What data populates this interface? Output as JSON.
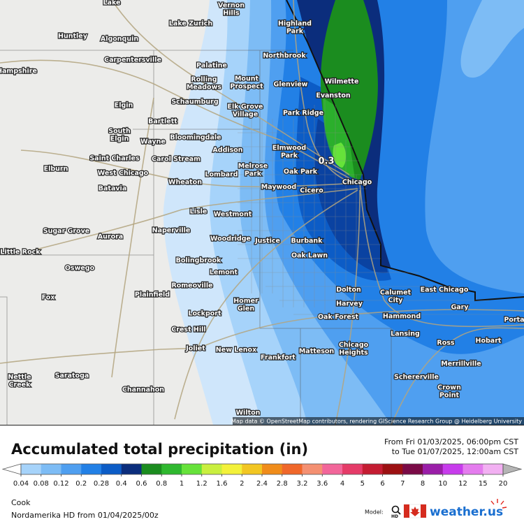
{
  "map": {
    "places": [
      {
        "lines": [
          "Lake"
        ]
      },
      {
        "lines": [
          "Vernon",
          "Hills"
        ]
      },
      {
        "lines": [
          "Lake Zurich"
        ]
      },
      {
        "lines": [
          "Highland",
          "Park"
        ]
      },
      {
        "lines": [
          "Huntley"
        ]
      },
      {
        "lines": [
          "Algonquin"
        ]
      },
      {
        "lines": [
          "Carpentersville"
        ]
      },
      {
        "lines": [
          "Northbrook"
        ]
      },
      {
        "lines": [
          "Hampshire"
        ]
      },
      {
        "lines": [
          "Palatine"
        ]
      },
      {
        "lines": [
          "Rolling",
          "Meadows"
        ]
      },
      {
        "lines": [
          "Mount",
          "Prospect"
        ]
      },
      {
        "lines": [
          "Glenview"
        ]
      },
      {
        "lines": [
          "Wilmette"
        ]
      },
      {
        "lines": [
          "Evanston"
        ]
      },
      {
        "lines": [
          "Schaumburg"
        ]
      },
      {
        "lines": [
          "Elgin"
        ]
      },
      {
        "lines": [
          "Elk Grove",
          "Village"
        ]
      },
      {
        "lines": [
          "Park Ridge"
        ]
      },
      {
        "lines": [
          "Bartlett"
        ]
      },
      {
        "lines": [
          "South",
          "Elgin"
        ]
      },
      {
        "lines": [
          "Wayne"
        ]
      },
      {
        "lines": [
          "Bloomingdale"
        ]
      },
      {
        "lines": [
          "Addison"
        ]
      },
      {
        "lines": [
          "Elmwood",
          "Park"
        ]
      },
      {
        "lines": [
          "Saint Charles"
        ]
      },
      {
        "lines": [
          "Carol Stream"
        ]
      },
      {
        "lines": [
          "Melrose",
          "Park"
        ]
      },
      {
        "lines": [
          "Oak Park"
        ]
      },
      {
        "lines": [
          "West Chicago"
        ]
      },
      {
        "lines": [
          "Lombard"
        ]
      },
      {
        "lines": [
          "Elburn"
        ]
      },
      {
        "lines": [
          "Chicago"
        ]
      },
      {
        "lines": [
          "Wheaton"
        ]
      },
      {
        "lines": [
          "Maywood"
        ]
      },
      {
        "lines": [
          "Cicero"
        ]
      },
      {
        "lines": [
          "Batavia"
        ]
      },
      {
        "lines": [
          "Lisle"
        ]
      },
      {
        "lines": [
          "Westmont"
        ]
      },
      {
        "lines": [
          "Sugar Grove"
        ]
      },
      {
        "lines": [
          "Naperville"
        ]
      },
      {
        "lines": [
          "Aurora"
        ]
      },
      {
        "lines": [
          "Woodridge"
        ]
      },
      {
        "lines": [
          "Justice"
        ]
      },
      {
        "lines": [
          "Burbank"
        ]
      },
      {
        "lines": [
          "Little Rock"
        ]
      },
      {
        "lines": [
          "Bolingbrook"
        ]
      },
      {
        "lines": [
          "Oak Lawn"
        ]
      },
      {
        "lines": [
          "Oswego"
        ]
      },
      {
        "lines": [
          "Lemont"
        ]
      },
      {
        "lines": [
          "Romeoville"
        ]
      },
      {
        "lines": [
          "Dolton"
        ]
      },
      {
        "lines": [
          "Calumet",
          "City"
        ]
      },
      {
        "lines": [
          "East Chicago"
        ]
      },
      {
        "lines": [
          "Fox"
        ]
      },
      {
        "lines": [
          "Plainfield"
        ]
      },
      {
        "lines": [
          "Homer",
          "Glen"
        ]
      },
      {
        "lines": [
          "Harvey"
        ]
      },
      {
        "lines": [
          "Gary"
        ]
      },
      {
        "lines": [
          "Lockport"
        ]
      },
      {
        "lines": [
          "Oak Forest"
        ]
      },
      {
        "lines": [
          "Hammond"
        ]
      },
      {
        "lines": [
          "Porta"
        ]
      },
      {
        "lines": [
          "Crest Hill"
        ]
      },
      {
        "lines": [
          "Lansing"
        ]
      },
      {
        "lines": [
          "Ross"
        ]
      },
      {
        "lines": [
          "Hobart"
        ]
      },
      {
        "lines": [
          "Joliet"
        ]
      },
      {
        "lines": [
          "New Lenox"
        ]
      },
      {
        "lines": [
          "Matteson"
        ]
      },
      {
        "lines": [
          "Chicago",
          "Heights"
        ]
      },
      {
        "lines": [
          "Frankfort"
        ]
      },
      {
        "lines": [
          "Merrillville"
        ]
      },
      {
        "lines": [
          "Nettle",
          "Creek"
        ]
      },
      {
        "lines": [
          "Saratoga"
        ]
      },
      {
        "lines": [
          "Schererville"
        ]
      },
      {
        "lines": [
          "Crown",
          "Point"
        ]
      },
      {
        "lines": [
          "Channahon"
        ]
      },
      {
        "lines": [
          "Wilton"
        ]
      }
    ],
    "annotation": "0.3",
    "attribution": "Map data © OpenStreetMap contributors, rendering GIScience Research Group @ Heidelberg University"
  },
  "legend": {
    "title": "Accumulated total precipitation (in)",
    "period": [
      "From Fri 01/03/2025, 06:00pm CST",
      "to Tue 01/07/2025, 12:00am CST"
    ],
    "labels": [
      "0.04",
      "0.08",
      "0.12",
      "0.2",
      "0.28",
      "0.4",
      "0.6",
      "0.8",
      "1",
      "1.2",
      "1.6",
      "2",
      "2.4",
      "2.8",
      "3.2",
      "3.6",
      "4",
      "5",
      "6",
      "7",
      "8",
      "10",
      "12",
      "15",
      "20"
    ],
    "colors": [
      "#a6d3fa",
      "#7dbcf5",
      "#4f9ff0",
      "#2280e6",
      "#0c5cc6",
      "#0b2d7c",
      "#1b8c1f",
      "#2fb82f",
      "#66e23a",
      "#c9ef3f",
      "#f3f13a",
      "#f2c622",
      "#f08c1a",
      "#f0672a",
      "#f49072",
      "#f2669a",
      "#e53b68",
      "#c41c32",
      "#9c1012",
      "#7a0a46",
      "#9a1ea8",
      "#c73cec",
      "#e47cee",
      "#f2b0f2"
    ]
  },
  "footer": {
    "region": "Cook",
    "model_run": "Nordamerika HD from  01/04/2025/00z",
    "model_label": "Model:",
    "brand": "weather.us"
  }
}
